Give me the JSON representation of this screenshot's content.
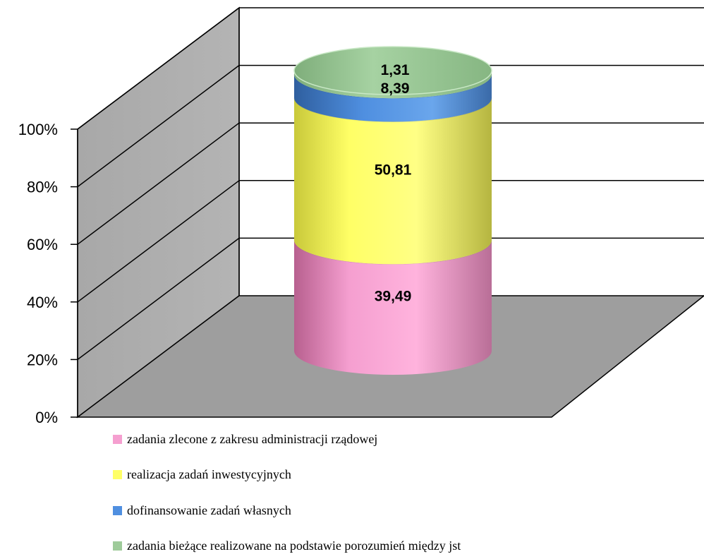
{
  "chart_data": {
    "type": "bar",
    "subtype": "stacked-100-percent-3d-cylinder",
    "categories": [
      ""
    ],
    "yaxis_ticks": [
      "0%",
      "20%",
      "40%",
      "60%",
      "80%",
      "100%"
    ],
    "ylim": [
      0,
      100
    ],
    "grid": true,
    "legend_position": "bottom",
    "series": [
      {
        "name": "zadania zlecone z zakresu administracji rządowej",
        "values": [
          39.49
        ],
        "label": "39,49",
        "color": "#f59fd0"
      },
      {
        "name": "realizacja zadań inwestycyjnych",
        "values": [
          50.81
        ],
        "label": "50,81",
        "color": "#ffff66"
      },
      {
        "name": "dofinansowanie zadań własnych",
        "values": [
          8.39
        ],
        "label": "8,39",
        "color": "#4f8fe0"
      },
      {
        "name": "zadania bieżące realizowane na podstawie porozumień między jst",
        "values": [
          1.31
        ],
        "label": "1,31",
        "color": "#9ecb9a"
      }
    ]
  }
}
